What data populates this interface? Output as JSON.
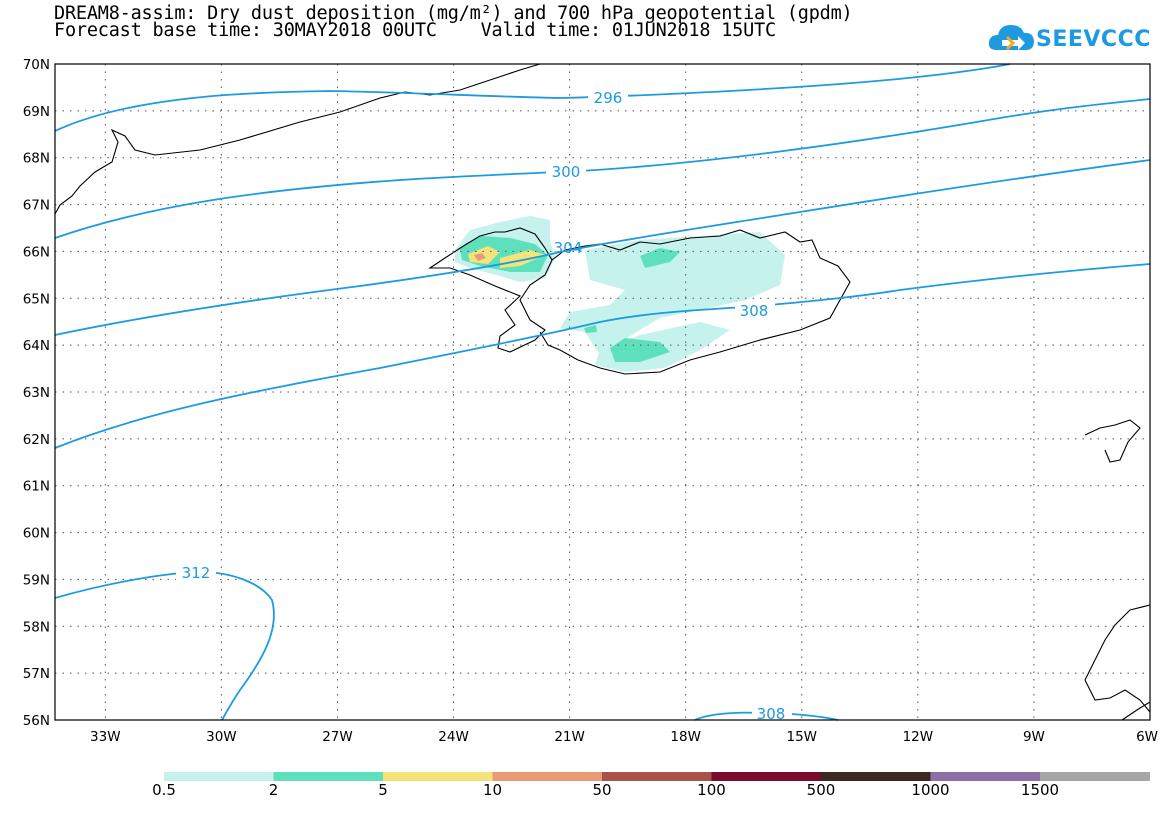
{
  "header": {
    "title_line1": "DREAM8-assim: Dry dust deposition (mg/m²) and 700 hPa geopotential (gpdm)",
    "title_line2": "Forecast base time: 30MAY2018 00UTC    Valid time: 01JUN2018 15UTC"
  },
  "logo": {
    "text": "SEEVCCC",
    "icon": "cloud-icon",
    "color": "#1e9be0"
  },
  "map": {
    "lat_labels": [
      "70N",
      "69N",
      "68N",
      "67N",
      "66N",
      "65N",
      "64N",
      "63N",
      "62N",
      "61N",
      "60N",
      "59N",
      "58N",
      "57N",
      "56N"
    ],
    "lon_labels": [
      "33W",
      "30W",
      "27W",
      "24W",
      "21W",
      "18W",
      "15W",
      "12W",
      "9W",
      "6W"
    ],
    "contour_color": "#1e9be0",
    "contour_labels": [
      "296",
      "300",
      "304",
      "308",
      "312",
      "308"
    ]
  },
  "colorbar": {
    "colors": [
      "#c5f2ec",
      "#5fe0bd",
      "#f4e37a",
      "#eb9a78",
      "#a8524a",
      "#7a0b2c",
      "#3b2a20",
      "#8f6fa3",
      "#a6a6a6"
    ],
    "labels": [
      "0.5",
      "2",
      "5",
      "10",
      "50",
      "100",
      "500",
      "1000",
      "1500"
    ]
  }
}
